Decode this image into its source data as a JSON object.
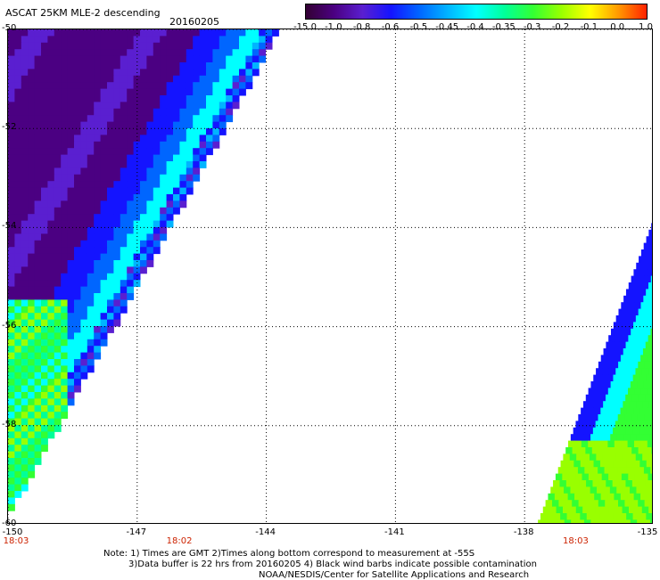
{
  "header": {
    "title": "ASCAT 25KM MLE-2 descending",
    "date": "20160205"
  },
  "colorbar": {
    "ticks": [
      "-15.0",
      "-1.0",
      "-0.8",
      "-0.6",
      "-0.5",
      "-0.45",
      "-0.4",
      "-0.35",
      "-0.3",
      "-0.2",
      "-0.1",
      "0.0",
      "1.0"
    ],
    "colors": [
      "#330033",
      "#4b0082",
      "#5a1fd0",
      "#1414ff",
      "#0066ff",
      "#00b4ff",
      "#00ffff",
      "#00ff99",
      "#33ff33",
      "#99ff00",
      "#ffff00",
      "#ff9900",
      "#ff2200"
    ]
  },
  "map": {
    "lat_labels": [
      "-50",
      "-52",
      "-54",
      "-56",
      "-58",
      "-60"
    ],
    "lon_labels": [
      "-150",
      "-147",
      "-144",
      "-141",
      "-138",
      "-135"
    ],
    "time_labels": [
      "18:03",
      "18:02",
      "18:03"
    ],
    "lon_range": [
      -150,
      -135
    ],
    "lat_range": [
      -60,
      -50
    ],
    "grid": true
  },
  "notes": {
    "line1": "Note: 1) Times are GMT 2)Times along bottom correspond to measurement at -55S",
    "line2": "3)Data buffer is 22 hrs from 20160205 4) Black wind barbs indicate possible contamination",
    "line3": "NOAA/NESDIS/Center for Satellite Applications and Research"
  }
}
